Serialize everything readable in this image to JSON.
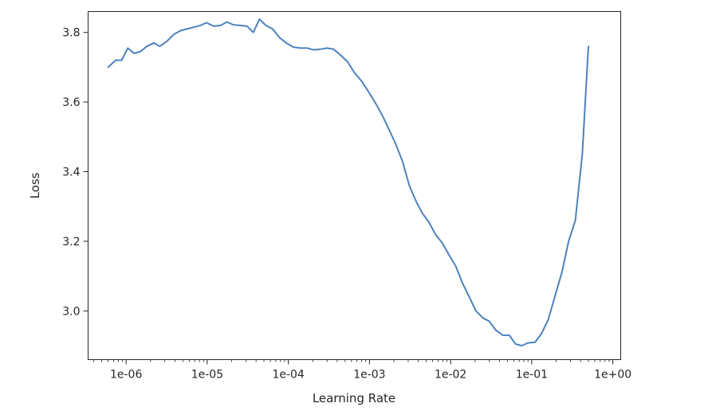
{
  "chart_data": {
    "type": "line",
    "title": "",
    "xlabel": "Learning Rate",
    "ylabel": "Loss",
    "xscale": "log",
    "xlim": [
      3.4e-07,
      1.25
    ],
    "ylim": [
      2.86,
      3.86
    ],
    "grid": false,
    "x_ticks": [
      {
        "value": 1e-06,
        "label": "1e-06"
      },
      {
        "value": 1e-05,
        "label": "1e-05"
      },
      {
        "value": 0.0001,
        "label": "1e-04"
      },
      {
        "value": 0.001,
        "label": "1e-03"
      },
      {
        "value": 0.01,
        "label": "1e-02"
      },
      {
        "value": 0.1,
        "label": "1e-01"
      },
      {
        "value": 1,
        "label": "1e+00"
      }
    ],
    "y_ticks": [
      {
        "value": 3.0,
        "label": "3.0"
      },
      {
        "value": 3.2,
        "label": "3.2"
      },
      {
        "value": 3.4,
        "label": "3.4"
      },
      {
        "value": 3.6,
        "label": "3.6"
      },
      {
        "value": 3.8,
        "label": "3.8"
      }
    ],
    "series": [
      {
        "color": "#4c82bd",
        "x": [
          6e-07,
          7.4e-07,
          8.8e-07,
          1.05e-06,
          1.25e-06,
          1.5e-06,
          1.8e-06,
          2.2e-06,
          2.6e-06,
          3.2e-06,
          3.9e-06,
          4.7e-06,
          5.6e-06,
          6.8e-06,
          8.2e-06,
          9.8e-06,
          1.2e-05,
          1.45e-05,
          1.75e-05,
          2.1e-05,
          2.6e-05,
          3.1e-05,
          3.7e-05,
          4.4e-05,
          5.3e-05,
          6.4e-05,
          7.8e-05,
          9.4e-05,
          0.000115,
          0.00014,
          0.00017,
          0.000205,
          0.00025,
          0.0003,
          0.00036,
          0.00044,
          0.00054,
          0.00065,
          0.0008,
          0.00096,
          0.0012,
          0.00145,
          0.00175,
          0.0021,
          0.00255,
          0.0031,
          0.00375,
          0.0045,
          0.0054,
          0.0065,
          0.0079,
          0.0096,
          0.0115,
          0.014,
          0.017,
          0.0205,
          0.025,
          0.03,
          0.036,
          0.044,
          0.053,
          0.063,
          0.075,
          0.09,
          0.11,
          0.132,
          0.16,
          0.195,
          0.235,
          0.285,
          0.345,
          0.42,
          0.5
        ],
        "y": [
          3.7,
          3.72,
          3.72,
          3.755,
          3.74,
          3.745,
          3.76,
          3.77,
          3.76,
          3.775,
          3.795,
          3.805,
          3.81,
          3.815,
          3.82,
          3.828,
          3.818,
          3.82,
          3.83,
          3.822,
          3.82,
          3.818,
          3.8,
          3.838,
          3.82,
          3.81,
          3.785,
          3.77,
          3.758,
          3.755,
          3.755,
          3.75,
          3.752,
          3.755,
          3.752,
          3.735,
          3.715,
          3.685,
          3.66,
          3.632,
          3.595,
          3.56,
          3.52,
          3.48,
          3.43,
          3.36,
          3.315,
          3.28,
          3.255,
          3.22,
          3.195,
          3.16,
          3.13,
          3.08,
          3.04,
          3.0,
          2.98,
          2.97,
          2.945,
          2.93,
          2.93,
          2.905,
          2.9,
          2.908,
          2.91,
          2.935,
          2.975,
          3.045,
          3.11,
          3.2,
          3.26,
          3.45,
          3.76
        ]
      }
    ]
  }
}
